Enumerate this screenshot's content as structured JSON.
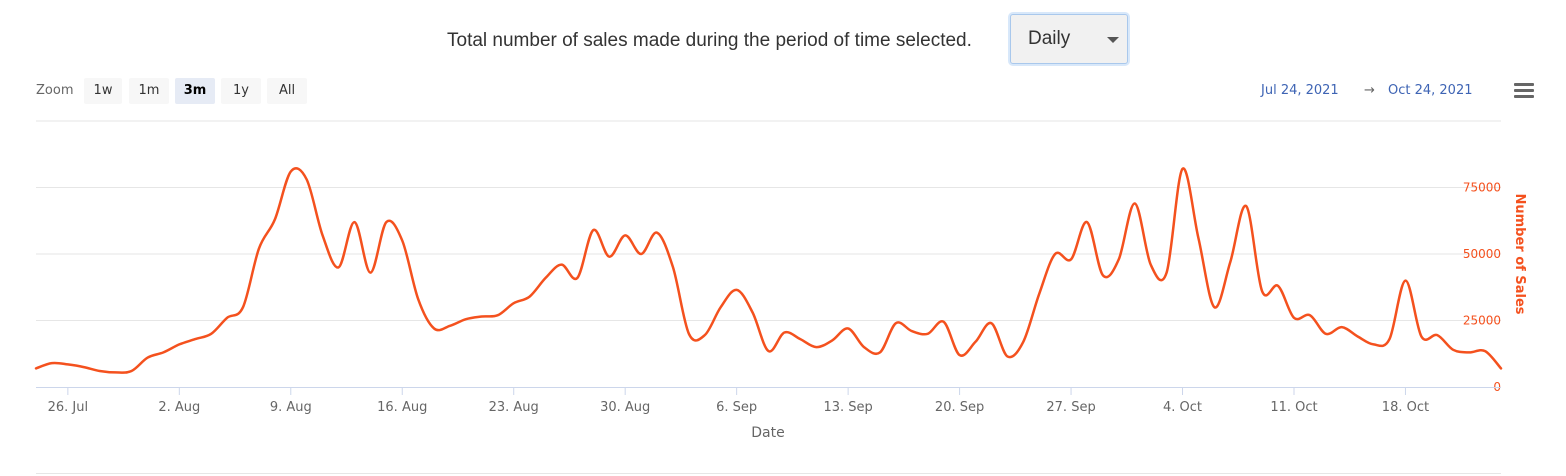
{
  "header": {
    "text": "Total number of sales made during the period of time selected.",
    "period_select": {
      "value": "Daily"
    }
  },
  "zoom": {
    "label": "Zoom",
    "buttons": [
      {
        "label": "1w",
        "active": false
      },
      {
        "label": "1m",
        "active": false
      },
      {
        "label": "3m",
        "active": true
      },
      {
        "label": "1y",
        "active": false
      },
      {
        "label": "All",
        "active": false
      }
    ]
  },
  "range": {
    "from": "Jul 24, 2021",
    "arrow": "→",
    "to": "Oct 24, 2021"
  },
  "colors": {
    "series": "#f4511e",
    "axis_link": "#3e64b4",
    "grid": "#e6e6e6"
  },
  "icons": {
    "menu": "hamburger-menu-icon",
    "dropdown": "caret-down-icon"
  },
  "chart_data": {
    "type": "line",
    "title": "",
    "xlabel": "Date",
    "ylabel": "Number of Sales",
    "y_axis_side": "right",
    "ylim": [
      0,
      100000
    ],
    "y_ticks": [
      0,
      25000,
      50000,
      75000
    ],
    "y_tick_labels": [
      "0",
      "25000",
      "50000",
      "75000"
    ],
    "x_range": [
      "2021-07-24",
      "2021-10-24"
    ],
    "x_ticks": [
      {
        "date": "2021-07-26",
        "label": "26. Jul"
      },
      {
        "date": "2021-08-02",
        "label": "2. Aug"
      },
      {
        "date": "2021-08-09",
        "label": "9. Aug"
      },
      {
        "date": "2021-08-16",
        "label": "16. Aug"
      },
      {
        "date": "2021-08-23",
        "label": "23. Aug"
      },
      {
        "date": "2021-08-30",
        "label": "30. Aug"
      },
      {
        "date": "2021-09-06",
        "label": "6. Sep"
      },
      {
        "date": "2021-09-13",
        "label": "13. Sep"
      },
      {
        "date": "2021-09-20",
        "label": "20. Sep"
      },
      {
        "date": "2021-09-27",
        "label": "27. Sep"
      },
      {
        "date": "2021-10-04",
        "label": "4. Oct"
      },
      {
        "date": "2021-10-11",
        "label": "11. Oct"
      },
      {
        "date": "2021-10-18",
        "label": "18. Oct"
      }
    ],
    "grid": true,
    "legend": "none",
    "series": [
      {
        "color": "#f4511e",
        "points": [
          [
            "2021-07-24",
            7000
          ],
          [
            "2021-07-25",
            9000
          ],
          [
            "2021-07-26",
            8500
          ],
          [
            "2021-07-27",
            7500
          ],
          [
            "2021-07-28",
            6000
          ],
          [
            "2021-07-29",
            5500
          ],
          [
            "2021-07-30",
            6000
          ],
          [
            "2021-07-31",
            11000
          ],
          [
            "2021-08-01",
            13000
          ],
          [
            "2021-08-02",
            16000
          ],
          [
            "2021-08-03",
            18000
          ],
          [
            "2021-08-04",
            20000
          ],
          [
            "2021-08-05",
            26000
          ],
          [
            "2021-08-06",
            30000
          ],
          [
            "2021-08-07",
            52000
          ],
          [
            "2021-08-08",
            63000
          ],
          [
            "2021-08-09",
            81000
          ],
          [
            "2021-08-10",
            78000
          ],
          [
            "2021-08-11",
            57000
          ],
          [
            "2021-08-12",
            45000
          ],
          [
            "2021-08-13",
            62000
          ],
          [
            "2021-08-14",
            43000
          ],
          [
            "2021-08-15",
            62000
          ],
          [
            "2021-08-16",
            55000
          ],
          [
            "2021-08-17",
            33000
          ],
          [
            "2021-08-18",
            22000
          ],
          [
            "2021-08-19",
            23000
          ],
          [
            "2021-08-20",
            25500
          ],
          [
            "2021-08-21",
            26500
          ],
          [
            "2021-08-22",
            27000
          ],
          [
            "2021-08-23",
            31500
          ],
          [
            "2021-08-24",
            34000
          ],
          [
            "2021-08-25",
            41000
          ],
          [
            "2021-08-26",
            46000
          ],
          [
            "2021-08-27",
            41000
          ],
          [
            "2021-08-28",
            59000
          ],
          [
            "2021-08-29",
            49000
          ],
          [
            "2021-08-30",
            57000
          ],
          [
            "2021-08-31",
            50000
          ],
          [
            "2021-09-01",
            58000
          ],
          [
            "2021-09-02",
            45000
          ],
          [
            "2021-09-03",
            20000
          ],
          [
            "2021-09-04",
            19500
          ],
          [
            "2021-09-05",
            30000
          ],
          [
            "2021-09-06",
            36500
          ],
          [
            "2021-09-07",
            28000
          ],
          [
            "2021-09-08",
            13500
          ],
          [
            "2021-09-09",
            20500
          ],
          [
            "2021-09-10",
            18000
          ],
          [
            "2021-09-11",
            15000
          ],
          [
            "2021-09-12",
            17500
          ],
          [
            "2021-09-13",
            22000
          ],
          [
            "2021-09-14",
            15000
          ],
          [
            "2021-09-15",
            13000
          ],
          [
            "2021-09-16",
            24000
          ],
          [
            "2021-09-17",
            21000
          ],
          [
            "2021-09-18",
            20000
          ],
          [
            "2021-09-19",
            24500
          ],
          [
            "2021-09-20",
            12000
          ],
          [
            "2021-09-21",
            17000
          ],
          [
            "2021-09-22",
            24000
          ],
          [
            "2021-09-23",
            11500
          ],
          [
            "2021-09-24",
            17000
          ],
          [
            "2021-09-25",
            35000
          ],
          [
            "2021-09-26",
            50000
          ],
          [
            "2021-09-27",
            48000
          ],
          [
            "2021-09-28",
            62000
          ],
          [
            "2021-09-29",
            42000
          ],
          [
            "2021-09-30",
            48000
          ],
          [
            "2021-10-01",
            69000
          ],
          [
            "2021-10-02",
            46000
          ],
          [
            "2021-10-03",
            43000
          ],
          [
            "2021-10-04",
            82000
          ],
          [
            "2021-10-05",
            56000
          ],
          [
            "2021-10-06",
            30000
          ],
          [
            "2021-10-07",
            47000
          ],
          [
            "2021-10-08",
            68000
          ],
          [
            "2021-10-09",
            36000
          ],
          [
            "2021-10-10",
            38000
          ],
          [
            "2021-10-11",
            26000
          ],
          [
            "2021-10-12",
            27000
          ],
          [
            "2021-10-13",
            20000
          ],
          [
            "2021-10-14",
            22500
          ],
          [
            "2021-10-15",
            19000
          ],
          [
            "2021-10-16",
            16000
          ],
          [
            "2021-10-17",
            18000
          ],
          [
            "2021-10-18",
            40000
          ],
          [
            "2021-10-19",
            19000
          ],
          [
            "2021-10-20",
            19500
          ],
          [
            "2021-10-21",
            14000
          ],
          [
            "2021-10-22",
            13000
          ],
          [
            "2021-10-23",
            13500
          ],
          [
            "2021-10-24",
            7000
          ]
        ]
      }
    ]
  }
}
